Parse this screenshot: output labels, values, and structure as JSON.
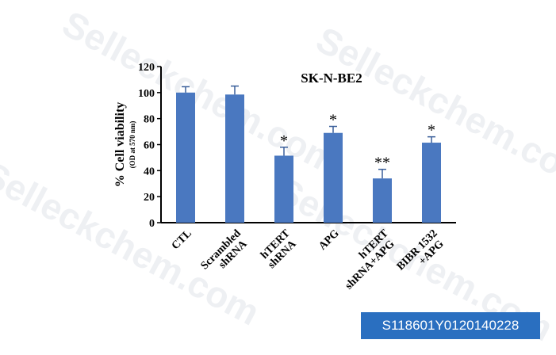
{
  "badge": {
    "text": "S118601Y0120140228"
  },
  "watermark": {
    "text": "Selleckchem.com"
  },
  "chart_data": {
    "type": "bar",
    "title": "SK-N-BE2",
    "ylabel": "% Cell viability",
    "ylabel_sub": "(OD at 570 nm)",
    "ylim": [
      0,
      120
    ],
    "yticks": [
      0,
      20,
      40,
      60,
      80,
      100,
      120
    ],
    "categories": [
      [
        "CTL"
      ],
      [
        "Scrambled",
        "shRNA"
      ],
      [
        "hTERT",
        "shRNA"
      ],
      [
        "APG"
      ],
      [
        "hTERT",
        "shRNA+APG"
      ],
      [
        "BIBR 1532",
        "+APG"
      ]
    ],
    "values": [
      100,
      98.5,
      51.5,
      69,
      34,
      61.5
    ],
    "errors": [
      4.5,
      6.5,
      6.5,
      5,
      7,
      4.5
    ],
    "significance": [
      "",
      "",
      "*",
      "*",
      "**",
      "*"
    ],
    "bar_color": "#4a78c0",
    "grid": false
  }
}
